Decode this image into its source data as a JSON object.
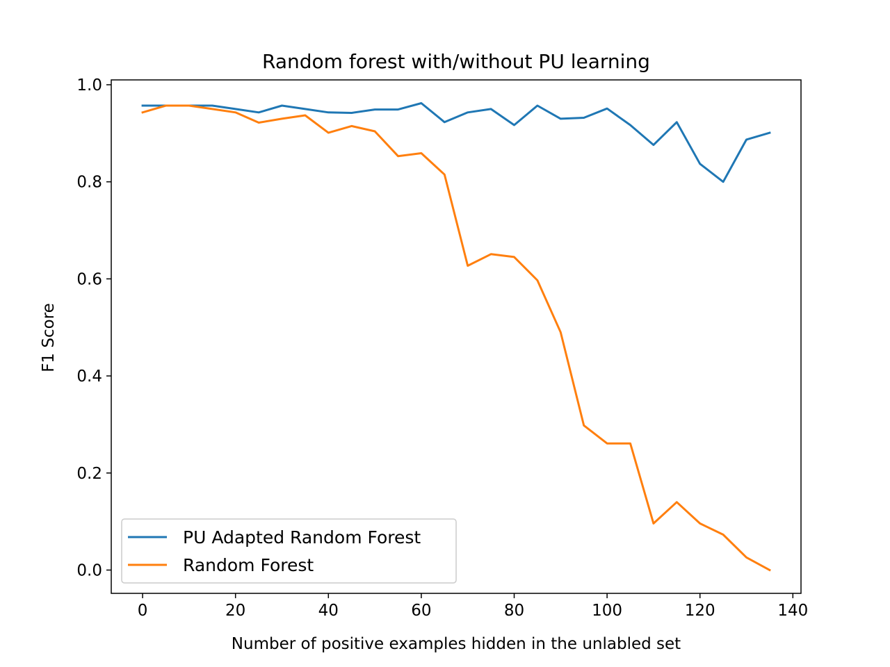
{
  "chart_data": {
    "type": "line",
    "title": "Random forest with/without PU learning",
    "xlabel": "Number of positive examples hidden in the unlabled set",
    "ylabel": "F1 Score",
    "xlim": [
      -6.75,
      141.75
    ],
    "ylim": [
      -0.048,
      1.01
    ],
    "xticks": [
      0,
      20,
      40,
      60,
      80,
      100,
      120,
      140
    ],
    "yticks": [
      0.0,
      0.2,
      0.4,
      0.6,
      0.8,
      1.0
    ],
    "xtick_labels": [
      "0",
      "20",
      "40",
      "60",
      "80",
      "100",
      "120",
      "140"
    ],
    "ytick_labels": [
      "0.0",
      "0.2",
      "0.4",
      "0.6",
      "0.8",
      "1.0"
    ],
    "grid": false,
    "legend_position": "lower-left",
    "x": [
      0,
      5,
      10,
      15,
      20,
      25,
      30,
      35,
      40,
      45,
      50,
      55,
      60,
      65,
      70,
      75,
      80,
      85,
      90,
      95,
      100,
      105,
      110,
      115,
      120,
      125,
      130,
      135
    ],
    "series": [
      {
        "name": "PU Adapted Random Forest",
        "color": "#1f77b4",
        "values": [
          0.957,
          0.957,
          0.957,
          0.957,
          0.95,
          0.943,
          0.957,
          0.95,
          0.943,
          0.942,
          0.949,
          0.949,
          0.962,
          0.923,
          0.943,
          0.95,
          0.917,
          0.957,
          0.93,
          0.932,
          0.951,
          0.917,
          0.876,
          0.923,
          0.837,
          0.8,
          0.887,
          0.901
        ]
      },
      {
        "name": "Random Forest",
        "color": "#ff7f0e",
        "values": [
          0.943,
          0.957,
          0.957,
          0.95,
          0.943,
          0.922,
          0.93,
          0.937,
          0.901,
          0.915,
          0.904,
          0.853,
          0.859,
          0.815,
          0.627,
          0.651,
          0.645,
          0.597,
          0.49,
          0.298,
          0.261,
          0.261,
          0.096,
          0.14,
          0.096,
          0.073,
          0.026,
          0.0
        ]
      }
    ]
  }
}
